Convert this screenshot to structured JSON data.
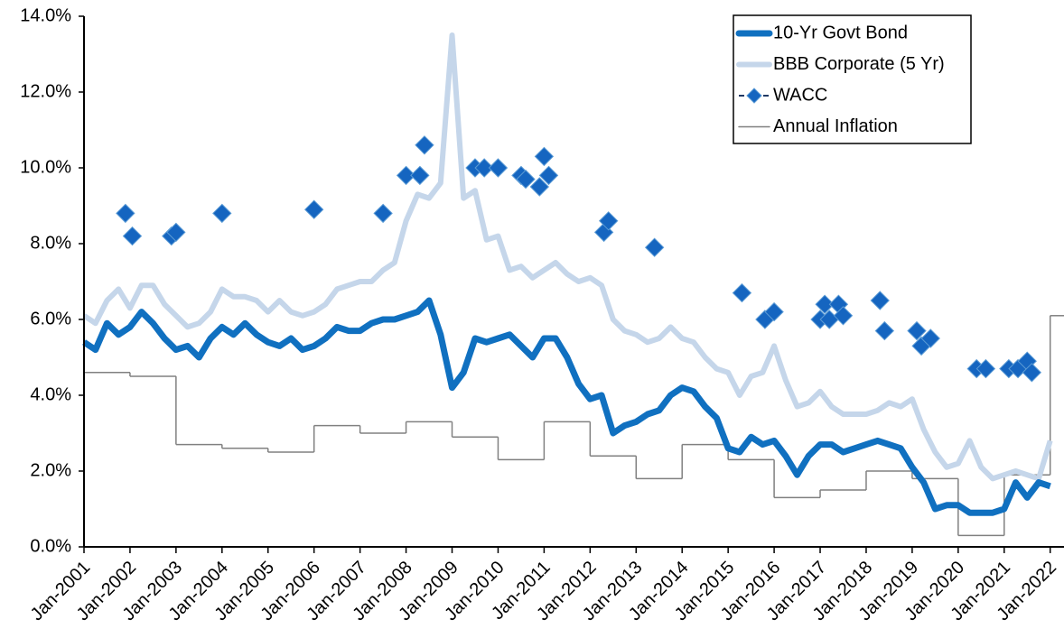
{
  "chart_data": {
    "type": "line",
    "xlim": [
      2001,
      2022.3
    ],
    "xticks": [
      {
        "value": 2001,
        "label": "Jan-2001"
      },
      {
        "value": 2002,
        "label": "Jan-2002"
      },
      {
        "value": 2003,
        "label": "Jan-2003"
      },
      {
        "value": 2004,
        "label": "Jan-2004"
      },
      {
        "value": 2005,
        "label": "Jan-2005"
      },
      {
        "value": 2006,
        "label": "Jan-2006"
      },
      {
        "value": 2007,
        "label": "Jan-2007"
      },
      {
        "value": 2008,
        "label": "Jan-2008"
      },
      {
        "value": 2009,
        "label": "Jan-2009"
      },
      {
        "value": 2010,
        "label": "Jan-2010"
      },
      {
        "value": 2011,
        "label": "Jan-2011"
      },
      {
        "value": 2012,
        "label": "Jan-2012"
      },
      {
        "value": 2013,
        "label": "Jan-2013"
      },
      {
        "value": 2014,
        "label": "Jan-2014"
      },
      {
        "value": 2015,
        "label": "Jan-2015"
      },
      {
        "value": 2016,
        "label": "Jan-2016"
      },
      {
        "value": 2017,
        "label": "Jan-2017"
      },
      {
        "value": 2018,
        "label": "Jan-2018"
      },
      {
        "value": 2019,
        "label": "Jan-2019"
      },
      {
        "value": 2020,
        "label": "Jan-2020"
      },
      {
        "value": 2021,
        "label": "Jan-2021"
      },
      {
        "value": 2022,
        "label": "Jan-2022"
      }
    ],
    "ylim": [
      0,
      14
    ],
    "yticks": [
      {
        "value": 0,
        "label": "0.0%"
      },
      {
        "value": 2,
        "label": "2.0%"
      },
      {
        "value": 4,
        "label": "4.0%"
      },
      {
        "value": 6,
        "label": "6.0%"
      },
      {
        "value": 8,
        "label": "8.0%"
      },
      {
        "value": 10,
        "label": "10.0%"
      },
      {
        "value": 12,
        "label": "12.0%"
      },
      {
        "value": 14,
        "label": "14.0%"
      }
    ],
    "grid": false,
    "legend": "top-right",
    "series": [
      {
        "name": "10-Yr Govt Bond",
        "kind": "line",
        "color": "#1070c0",
        "width": 7,
        "x": [
          2001,
          2001.25,
          2001.5,
          2001.75,
          2002,
          2002.25,
          2002.5,
          2002.75,
          2003,
          2003.25,
          2003.5,
          2003.75,
          2004,
          2004.25,
          2004.5,
          2004.75,
          2005,
          2005.25,
          2005.5,
          2005.75,
          2006,
          2006.25,
          2006.5,
          2006.75,
          2007,
          2007.25,
          2007.5,
          2007.75,
          2008,
          2008.25,
          2008.5,
          2008.75,
          2009,
          2009.25,
          2009.5,
          2009.75,
          2010,
          2010.25,
          2010.5,
          2010.75,
          2011,
          2011.25,
          2011.5,
          2011.75,
          2012,
          2012.25,
          2012.5,
          2012.75,
          2013,
          2013.25,
          2013.5,
          2013.75,
          2014,
          2014.25,
          2014.5,
          2014.75,
          2015,
          2015.25,
          2015.5,
          2015.75,
          2016,
          2016.25,
          2016.5,
          2016.75,
          2017,
          2017.25,
          2017.5,
          2017.75,
          2018,
          2018.25,
          2018.5,
          2018.75,
          2019,
          2019.25,
          2019.5,
          2019.75,
          2020,
          2020.25,
          2020.5,
          2020.75,
          2021,
          2021.25,
          2021.5,
          2021.75,
          2022
        ],
        "values": [
          5.4,
          5.2,
          5.9,
          5.6,
          5.8,
          6.2,
          5.9,
          5.5,
          5.2,
          5.3,
          5.0,
          5.5,
          5.8,
          5.6,
          5.9,
          5.6,
          5.4,
          5.3,
          5.5,
          5.2,
          5.3,
          5.5,
          5.8,
          5.7,
          5.7,
          5.9,
          6.0,
          6.0,
          6.1,
          6.2,
          6.5,
          5.6,
          4.2,
          4.6,
          5.5,
          5.4,
          5.5,
          5.6,
          5.3,
          5.0,
          5.5,
          5.5,
          5.0,
          4.3,
          3.9,
          4.0,
          3.0,
          3.2,
          3.3,
          3.5,
          3.6,
          4.0,
          4.2,
          4.1,
          3.7,
          3.4,
          2.6,
          2.5,
          2.9,
          2.7,
          2.8,
          2.4,
          1.9,
          2.4,
          2.7,
          2.7,
          2.5,
          2.6,
          2.7,
          2.8,
          2.7,
          2.6,
          2.1,
          1.7,
          1.0,
          1.1,
          1.1,
          0.9,
          0.9,
          0.9,
          1.0,
          1.7,
          1.3,
          1.7,
          1.6
        ]
      },
      {
        "name": "BBB Corporate (5 Yr)",
        "kind": "line",
        "color": "#c5d6ea",
        "width": 6,
        "x": [
          2001,
          2001.25,
          2001.5,
          2001.75,
          2002,
          2002.25,
          2002.5,
          2002.75,
          2003,
          2003.25,
          2003.5,
          2003.75,
          2004,
          2004.25,
          2004.5,
          2004.75,
          2005,
          2005.25,
          2005.5,
          2005.75,
          2006,
          2006.25,
          2006.5,
          2006.75,
          2007,
          2007.25,
          2007.5,
          2007.75,
          2008,
          2008.25,
          2008.5,
          2008.75,
          2009,
          2009.25,
          2009.5,
          2009.75,
          2010,
          2010.25,
          2010.5,
          2010.75,
          2011,
          2011.25,
          2011.5,
          2011.75,
          2012,
          2012.25,
          2012.5,
          2012.75,
          2013,
          2013.25,
          2013.5,
          2013.75,
          2014,
          2014.25,
          2014.5,
          2014.75,
          2015,
          2015.25,
          2015.5,
          2015.75,
          2016,
          2016.25,
          2016.5,
          2016.75,
          2017,
          2017.25,
          2017.5,
          2017.75,
          2018,
          2018.25,
          2018.5,
          2018.75,
          2019,
          2019.25,
          2019.5,
          2019.75,
          2020,
          2020.25,
          2020.5,
          2020.75,
          2021,
          2021.25,
          2021.5,
          2021.75,
          2022
        ],
        "values": [
          6.1,
          5.9,
          6.5,
          6.8,
          6.3,
          6.9,
          6.9,
          6.4,
          6.1,
          5.8,
          5.9,
          6.2,
          6.8,
          6.6,
          6.6,
          6.5,
          6.2,
          6.5,
          6.2,
          6.1,
          6.2,
          6.4,
          6.8,
          6.9,
          7.0,
          7.0,
          7.3,
          7.5,
          8.6,
          9.3,
          9.2,
          9.6,
          13.5,
          9.2,
          9.4,
          8.1,
          8.2,
          7.3,
          7.4,
          7.1,
          7.3,
          7.5,
          7.2,
          7.0,
          7.1,
          6.9,
          6.0,
          5.7,
          5.6,
          5.4,
          5.5,
          5.8,
          5.5,
          5.4,
          5.0,
          4.7,
          4.6,
          4.0,
          4.5,
          4.6,
          5.3,
          4.4,
          3.7,
          3.8,
          4.1,
          3.7,
          3.5,
          3.5,
          3.5,
          3.6,
          3.8,
          3.7,
          3.9,
          3.1,
          2.5,
          2.1,
          2.2,
          2.8,
          2.1,
          1.8,
          1.9,
          2.0,
          1.9,
          1.8,
          2.8
        ]
      },
      {
        "name": "WACC",
        "kind": "scatter",
        "color": "#1565c0",
        "x": [
          2001.9,
          2002.05,
          2002.9,
          2003.0,
          2004.0,
          2006.0,
          2007.5,
          2008.0,
          2008.3,
          2008.4,
          2009.5,
          2009.7,
          2010.0,
          2010.5,
          2010.6,
          2010.9,
          2011.0,
          2011.1,
          2012.3,
          2012.4,
          2013.4,
          2015.3,
          2015.8,
          2016.0,
          2017.0,
          2017.1,
          2017.2,
          2017.4,
          2017.5,
          2018.3,
          2018.4,
          2019.1,
          2019.2,
          2019.4,
          2020.4,
          2020.6,
          2021.1,
          2021.3,
          2021.5,
          2021.6
        ],
        "values": [
          8.8,
          8.2,
          8.2,
          8.3,
          8.8,
          8.9,
          8.8,
          9.8,
          9.8,
          10.6,
          10.0,
          10.0,
          10.0,
          9.8,
          9.7,
          9.5,
          10.3,
          9.8,
          8.3,
          8.6,
          7.9,
          6.7,
          6.0,
          6.2,
          6.0,
          6.4,
          6.0,
          6.4,
          6.1,
          6.5,
          5.7,
          5.7,
          5.3,
          5.5,
          4.7,
          4.7,
          4.7,
          4.7,
          4.9,
          4.6
        ]
      },
      {
        "name": "Annual Inflation",
        "kind": "step",
        "color": "#808080",
        "width": 1.5,
        "x": [
          2001,
          2002,
          2003,
          2004,
          2005,
          2006,
          2007,
          2008,
          2009,
          2010,
          2011,
          2012,
          2013,
          2014,
          2015,
          2016,
          2017,
          2018,
          2019,
          2020,
          2021,
          2022
        ],
        "values": [
          4.6,
          4.5,
          2.7,
          2.6,
          2.5,
          3.2,
          3.0,
          3.3,
          2.9,
          2.3,
          3.3,
          2.4,
          1.8,
          2.7,
          2.3,
          1.3,
          1.5,
          2.0,
          1.8,
          0.3,
          1.9,
          6.1
        ]
      }
    ]
  }
}
